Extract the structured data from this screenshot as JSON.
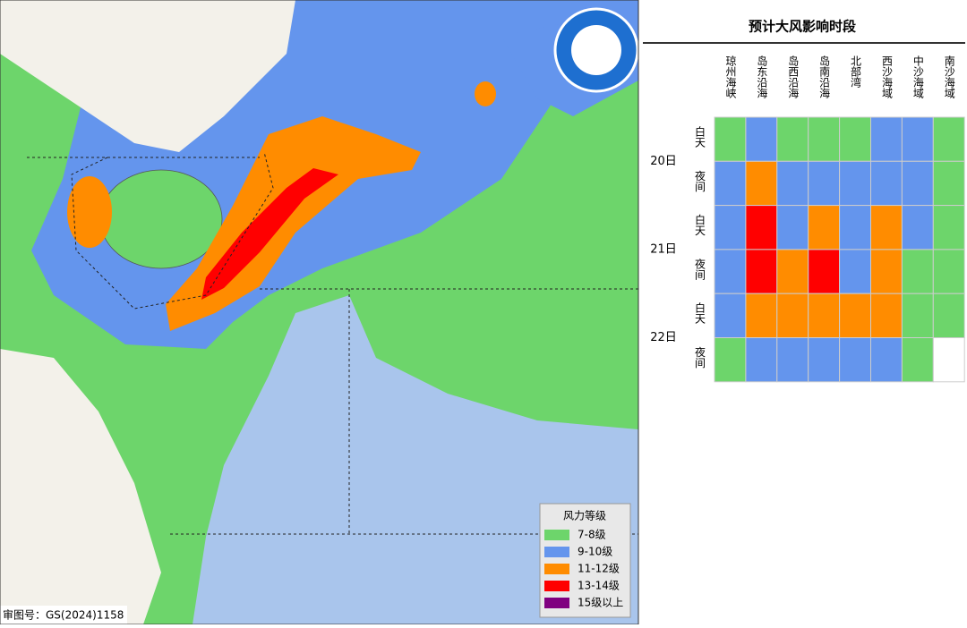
{
  "map": {
    "approval": "审图号：GS(2024)1158",
    "legend": {
      "title": "风力等级",
      "items": [
        {
          "label": "7-8级",
          "color": "#6dd56b"
        },
        {
          "label": "9-10级",
          "color": "#6495ed"
        },
        {
          "label": "11-12级",
          "color": "#ff8c00"
        },
        {
          "label": "13-14级",
          "color": "#ff0000"
        },
        {
          "label": "15级以上",
          "color": "#800080"
        }
      ]
    }
  },
  "table": {
    "title": "预计大风影响时段",
    "columns": [
      "琼州海峡",
      "岛东沿海",
      "岛西沿海",
      "岛南沿海",
      "北部湾",
      "西沙海域",
      "中沙海域",
      "南沙海域"
    ],
    "days": [
      {
        "date": "20日",
        "periods": [
          {
            "label": "白天",
            "cells": [
              0,
              1,
              0,
              0,
              0,
              1,
              1,
              0
            ]
          },
          {
            "label": "夜间",
            "cells": [
              1,
              2,
              1,
              1,
              1,
              1,
              1,
              0
            ]
          }
        ]
      },
      {
        "date": "21日",
        "periods": [
          {
            "label": "白天",
            "cells": [
              1,
              3,
              1,
              2,
              1,
              2,
              1,
              0
            ]
          },
          {
            "label": "夜间",
            "cells": [
              1,
              3,
              2,
              3,
              1,
              2,
              0,
              0
            ]
          }
        ]
      },
      {
        "date": "22日",
        "periods": [
          {
            "label": "白天",
            "cells": [
              1,
              2,
              2,
              2,
              2,
              2,
              0,
              0
            ]
          },
          {
            "label": "夜间",
            "cells": [
              0,
              1,
              1,
              1,
              1,
              1,
              0,
              null
            ]
          }
        ]
      }
    ]
  }
}
